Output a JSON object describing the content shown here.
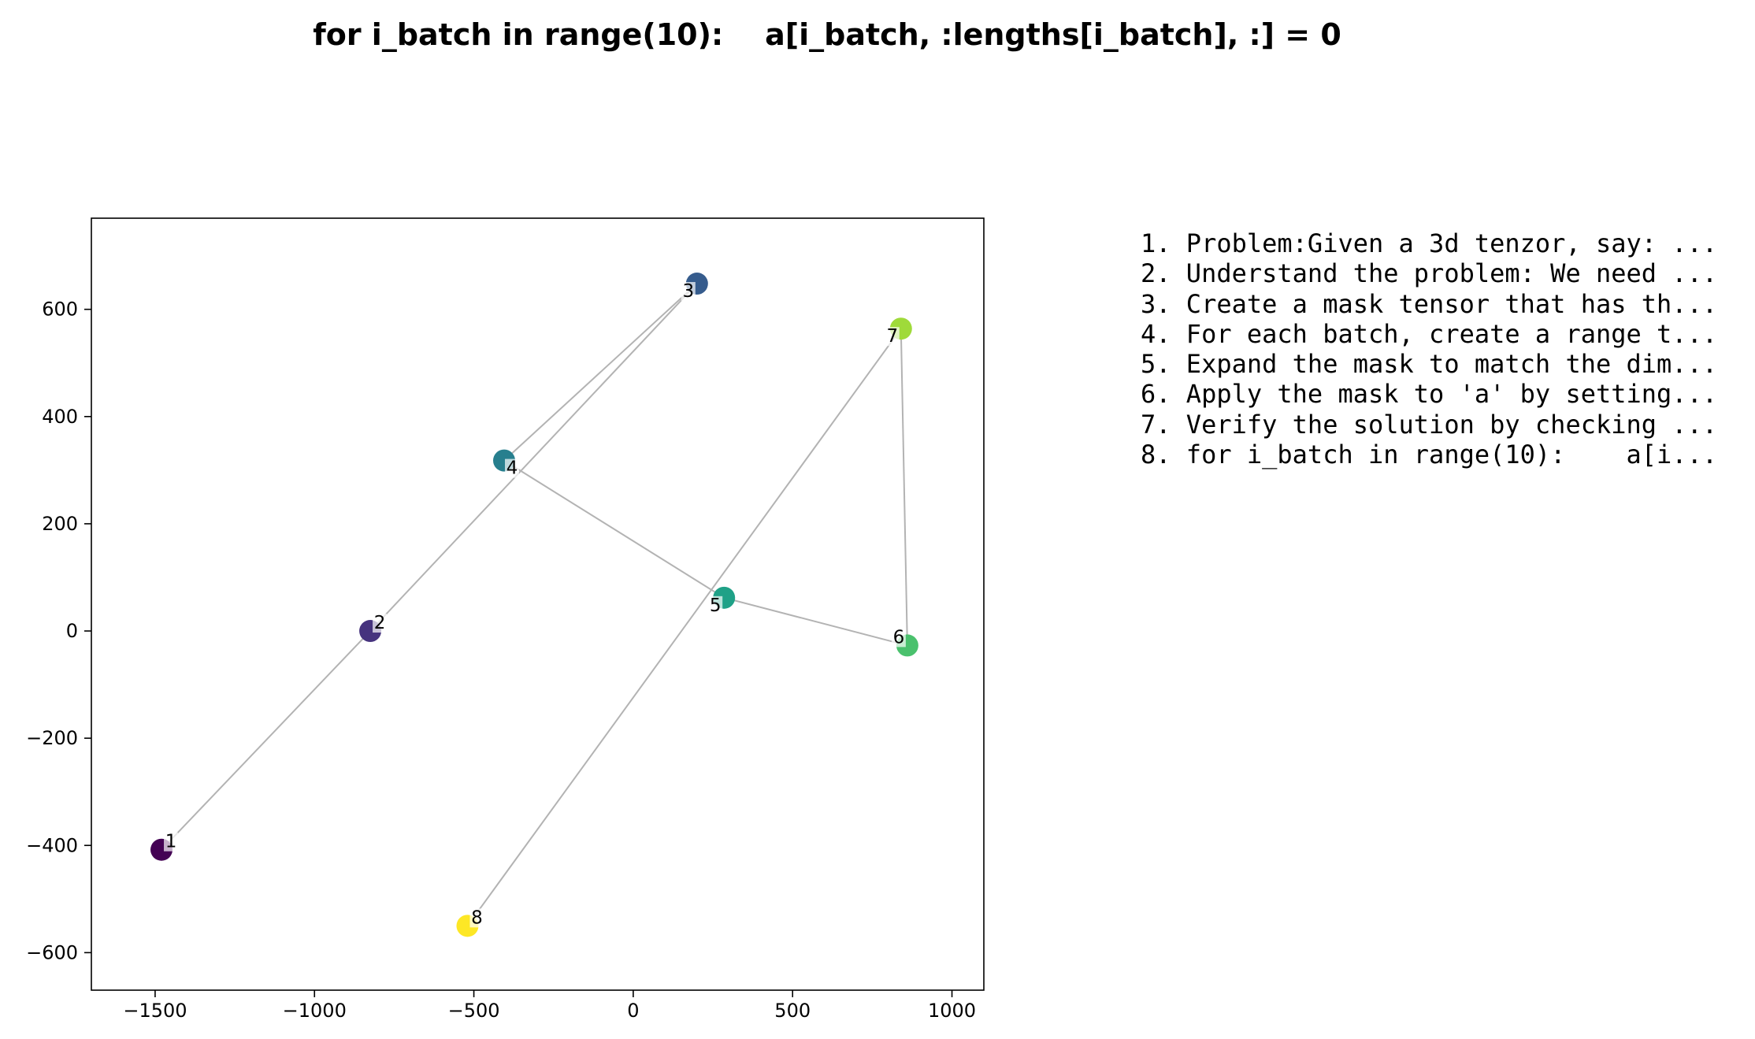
{
  "chart_data": {
    "type": "scatter",
    "title": "for i_batch in range(10):    a[i_batch, :lengths[i_batch], :] = 0",
    "xlabel": "",
    "ylabel": "",
    "xlim": [
      -1700,
      1100
    ],
    "ylim": [
      -670,
      770
    ],
    "grid": false,
    "x_ticks": [
      -1500,
      -1000,
      -500,
      0,
      500,
      1000
    ],
    "x_tick_labels": [
      "−1500",
      "−1000",
      "−500",
      "0",
      "500",
      "1000"
    ],
    "y_ticks": [
      -600,
      -400,
      -200,
      0,
      200,
      400,
      600
    ],
    "y_tick_labels": [
      "−600",
      "−400",
      "−200",
      "0",
      "200",
      "400",
      "600"
    ],
    "points": [
      {
        "label": "1",
        "x": -1480,
        "y": -408,
        "color": "#440154"
      },
      {
        "label": "2",
        "x": -825,
        "y": 0,
        "color": "#46337e"
      },
      {
        "label": "3",
        "x": 200,
        "y": 648,
        "color": "#365c8d"
      },
      {
        "label": "4",
        "x": -405,
        "y": 318,
        "color": "#277f8e"
      },
      {
        "label": "5",
        "x": 285,
        "y": 62,
        "color": "#1fa187"
      },
      {
        "label": "6",
        "x": 860,
        "y": -27,
        "color": "#4ac16d"
      },
      {
        "label": "7",
        "x": 840,
        "y": 564,
        "color": "#9fda3a"
      },
      {
        "label": "8",
        "x": -520,
        "y": -550,
        "color": "#fde725"
      }
    ],
    "edges": [
      [
        1,
        2
      ],
      [
        2,
        3
      ],
      [
        3,
        4
      ],
      [
        4,
        5
      ],
      [
        5,
        6
      ],
      [
        6,
        7
      ],
      [
        7,
        8
      ]
    ],
    "edge_color": "#b3b3b3"
  },
  "steps": [
    "1. Problem:Given a 3d tenzor, say: ...",
    "2. Understand the problem: We need ...",
    "3. Create a mask tensor that has th...",
    "4. For each batch, create a range t...",
    "5. Expand the mask to match the dim...",
    "6. Apply the mask to 'a' by setting...",
    "7. Verify the solution by checking ...",
    "8. for i_batch in range(10):    a[i..."
  ]
}
